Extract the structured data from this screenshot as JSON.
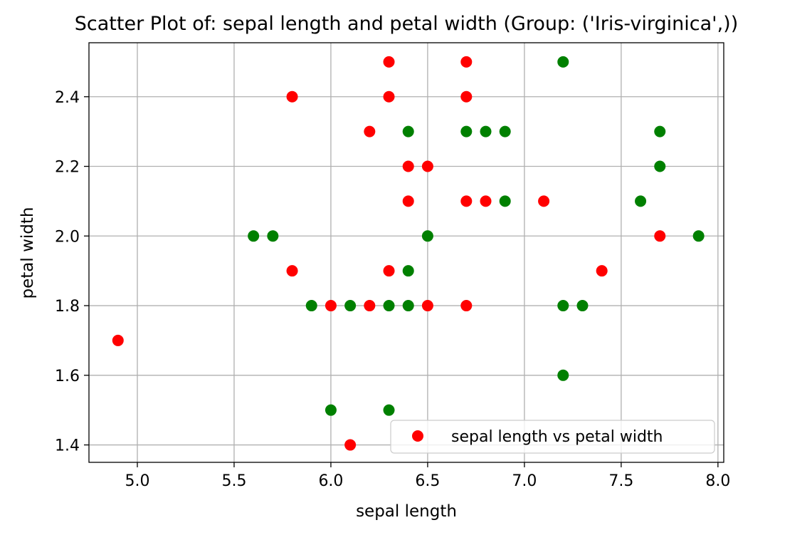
{
  "chart_data": {
    "type": "scatter",
    "title": "Scatter Plot of: sepal length and petal width (Group: ('Iris-virginica',))",
    "xlabel": "sepal length",
    "ylabel": "petal width",
    "xlim": [
      4.75,
      8.03
    ],
    "ylim": [
      1.35,
      2.555
    ],
    "xticks": [
      5.0,
      5.5,
      6.0,
      6.5,
      7.0,
      7.5,
      8.0
    ],
    "xtick_labels": [
      "5.0",
      "5.5",
      "6.0",
      "6.5",
      "7.0",
      "7.5",
      "8.0"
    ],
    "yticks": [
      1.4,
      1.6,
      1.8,
      2.0,
      2.2,
      2.4
    ],
    "ytick_labels": [
      "1.4",
      "1.6",
      "1.8",
      "2.0",
      "2.2",
      "2.4"
    ],
    "grid": true,
    "legend": {
      "position": "lower-right",
      "entries": [
        "sepal length vs petal width"
      ]
    },
    "series": [
      {
        "name": "sepal length vs petal width",
        "color": "#ff0000",
        "x": [
          4.9,
          5.8,
          5.8,
          6.0,
          6.1,
          6.2,
          6.2,
          6.3,
          6.3,
          6.3,
          6.4,
          6.4,
          6.5,
          6.5,
          6.7,
          6.7,
          6.7,
          6.7,
          6.8,
          7.1,
          7.4,
          7.7
        ],
        "y": [
          1.7,
          2.4,
          1.9,
          1.8,
          1.4,
          2.3,
          1.8,
          2.5,
          2.4,
          1.9,
          2.2,
          2.1,
          2.2,
          1.8,
          2.5,
          2.4,
          2.1,
          1.8,
          2.1,
          2.1,
          1.9,
          2.0
        ]
      },
      {
        "color": "#008000",
        "x": [
          5.6,
          5.7,
          5.9,
          6.0,
          6.1,
          6.3,
          6.3,
          6.4,
          6.4,
          6.4,
          6.5,
          6.7,
          6.8,
          6.9,
          6.9,
          7.2,
          7.2,
          7.2,
          7.3,
          7.6,
          7.7,
          7.7,
          7.9
        ],
        "y": [
          2.0,
          2.0,
          1.8,
          1.5,
          1.8,
          1.8,
          1.5,
          2.3,
          1.9,
          1.8,
          2.0,
          2.3,
          2.3,
          2.3,
          2.1,
          2.5,
          1.8,
          1.6,
          1.8,
          2.1,
          2.3,
          2.2,
          2.0
        ]
      }
    ]
  }
}
